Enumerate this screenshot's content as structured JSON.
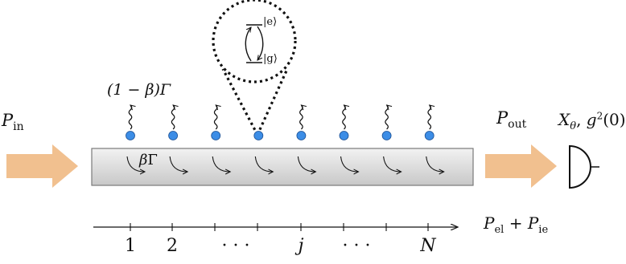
{
  "labels": {
    "p_in_main": "P",
    "p_in_sub": "in",
    "p_out_main": "P",
    "p_out_sub": "out",
    "detector_label": "X",
    "detector_theta": "θ",
    "detector_g2": "g",
    "detector_g2_exp": "2",
    "detector_g2_arg": "(0)",
    "emission_rate": "(1 − β)Γ",
    "guided_rate_beta": "β",
    "guided_rate_gamma": "Γ",
    "excited_state": "|e⟩",
    "ground_state": "|g⟩",
    "losses_p1": "P",
    "losses_p1_sub": "el",
    "losses_plus": "+",
    "losses_p2": "P",
    "losses_p2_sub": "ie"
  },
  "axis": {
    "ticks": [
      "1",
      "2",
      "· · ·",
      "j",
      "· · ·",
      "N"
    ]
  },
  "colors": {
    "arrow": "#f1c08f",
    "atom": "#3c8de6",
    "atom_stroke": "#1b4f93",
    "waveguide_top": "#f2f2f2",
    "waveguide_bottom": "#c8c8c8",
    "waveguide_stroke": "#7a7a7a",
    "line": "#111111"
  },
  "atoms": {
    "count": 8
  }
}
